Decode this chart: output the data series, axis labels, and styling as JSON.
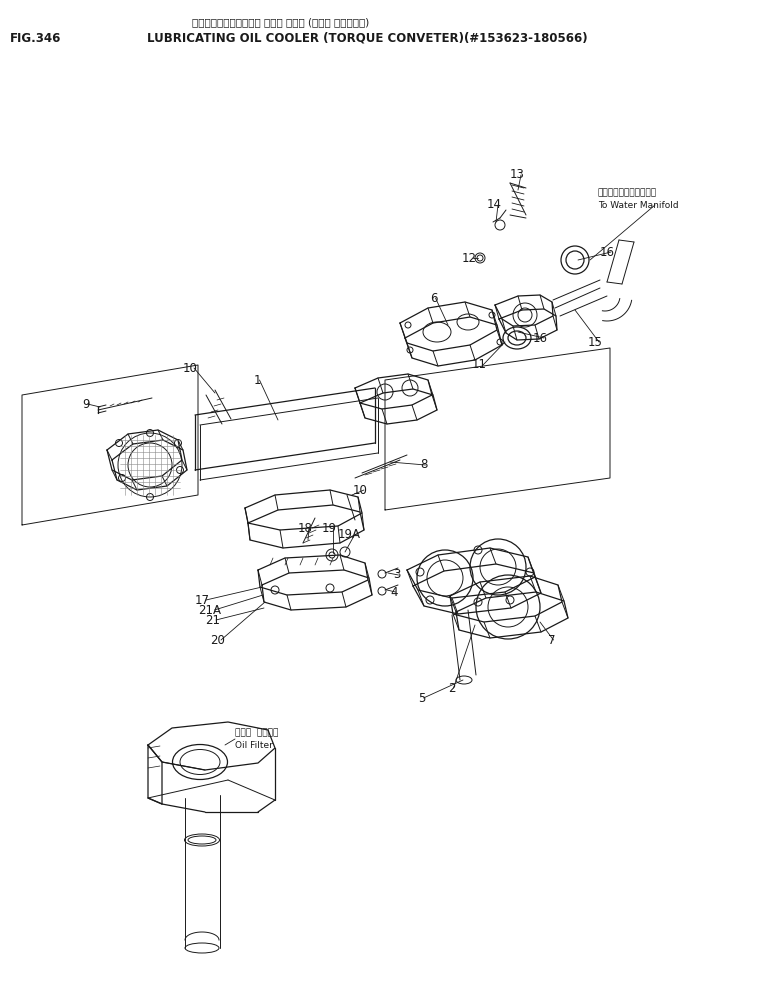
{
  "title_jp": "ルーブリケーティング・ オイル クーラ (トルク コンバータ)",
  "title_fig": "FIG.346",
  "title_en": "LUBRICATING OIL COOLER (TORQUE CONVETER)(#153623-180566)",
  "bg_color": "#ffffff",
  "line_color": "#1a1a1a",
  "label_color": "#1a1a1a",
  "water_manifold_jp": "ウォータマニホールドへ",
  "water_manifold_en": "To Water Manifold",
  "oil_filter_jp": "オイル  フィルタ",
  "oil_filter_en": "Oil Filter"
}
